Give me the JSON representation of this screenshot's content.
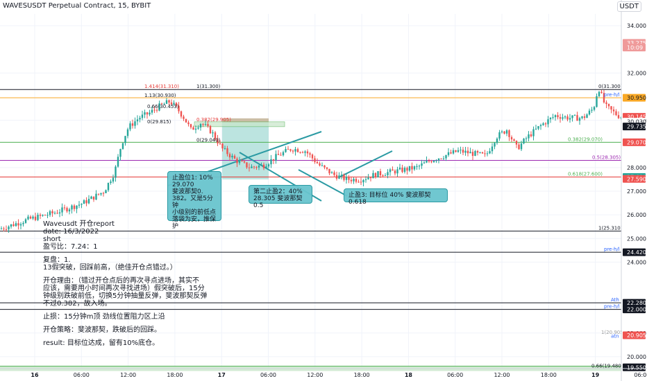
{
  "header": {
    "title": "WAVESUSDT Perpetual Contract, 15, BYBIT",
    "currency_button": "USDT"
  },
  "colors": {
    "up": "#26a69a",
    "down": "#ef5350",
    "fib_red": "#e53935",
    "fib_green": "#4caf50",
    "fib_purple": "#9c27b0",
    "fib_orange": "#f9a825",
    "teal_box": "#9fd9d3",
    "callout_bg": "#68c4cd",
    "badge_blue": "#2962ff",
    "badge_dark": "#131722"
  },
  "chart_data": {
    "type": "candlestick",
    "y_range": [
      19.5,
      34.5
    ],
    "y_ticks": [
      "34.000",
      "32.000",
      "30.000",
      "28.000",
      "27.000",
      "26.000",
      "25.000",
      "24.000",
      "22.000",
      "21.000",
      "20.000"
    ],
    "x_ticks": [
      "16",
      "06:00",
      "12:00",
      "18:00",
      "17",
      "06:00",
      "12:00",
      "18:00",
      "18",
      "06:00",
      "12:00",
      "18:00",
      "19",
      "06:00"
    ],
    "close_path": [
      [
        0,
        25.4
      ],
      [
        40,
        25.8
      ],
      [
        80,
        26.1
      ],
      [
        120,
        26.5
      ],
      [
        150,
        27.0
      ],
      [
        165,
        27.8
      ],
      [
        175,
        29.0
      ],
      [
        185,
        29.7
      ],
      [
        200,
        30.1
      ],
      [
        215,
        30.3
      ],
      [
        230,
        30.6
      ],
      [
        245,
        30.8
      ],
      [
        255,
        30.5
      ],
      [
        265,
        30.1
      ],
      [
        275,
        29.6
      ],
      [
        290,
        29.9
      ],
      [
        305,
        29.5
      ],
      [
        320,
        28.8
      ],
      [
        340,
        28.3
      ],
      [
        360,
        28.0
      ],
      [
        380,
        28.1
      ],
      [
        400,
        28.5
      ],
      [
        420,
        28.8
      ],
      [
        440,
        28.7
      ],
      [
        460,
        28.1
      ],
      [
        480,
        27.7
      ],
      [
        500,
        27.5
      ],
      [
        520,
        27.5
      ],
      [
        540,
        27.7
      ],
      [
        560,
        27.8
      ],
      [
        580,
        27.9
      ],
      [
        600,
        28.0
      ],
      [
        620,
        28.3
      ],
      [
        640,
        28.5
      ],
      [
        660,
        28.7
      ],
      [
        680,
        28.6
      ],
      [
        700,
        28.5
      ],
      [
        715,
        29.3
      ],
      [
        730,
        29.6
      ],
      [
        745,
        28.8
      ],
      [
        760,
        29.3
      ],
      [
        780,
        29.8
      ],
      [
        800,
        30.2
      ],
      [
        820,
        30.1
      ],
      [
        840,
        30.1
      ],
      [
        855,
        30.5
      ],
      [
        862,
        31.4
      ],
      [
        872,
        30.6
      ],
      [
        890,
        30.2
      ],
      [
        900,
        30.1
      ]
    ],
    "price_labels": [
      {
        "text": "33.275",
        "price": 33.275,
        "color": "#ef9a9a",
        "text_color": "#ffffff"
      },
      {
        "text": "10:09",
        "price": 33.075,
        "color": "#ef9a9a",
        "text_color": "#ffffff"
      },
      {
        "text": "30.950",
        "price": 30.95,
        "color": "#f9a825",
        "text_color": "#131722"
      },
      {
        "text": "30.145",
        "price": 30.145,
        "color": "#ef5350",
        "text_color": "#ffffff"
      },
      {
        "text": "30.030",
        "price": 29.94,
        "color": "#ffffff",
        "text_color": "#131722"
      },
      {
        "text": "29.735",
        "price": 29.735,
        "color": "#131722",
        "text_color": "#ffffff"
      },
      {
        "text": "29.070",
        "price": 29.07,
        "color": "#ef5350",
        "text_color": "#ffffff"
      },
      {
        "text": "27.600",
        "price": 27.6,
        "color": "#26a69a",
        "text_color": "#ffffff"
      },
      {
        "text": "27.590",
        "price": 27.52,
        "color": "#ef5350",
        "text_color": "#ffffff"
      },
      {
        "text": "24.420",
        "price": 24.42,
        "color": "#131722",
        "text_color": "#ffffff"
      },
      {
        "text": "22.280",
        "price": 22.28,
        "color": "#131722",
        "text_color": "#ffffff"
      },
      {
        "text": "22.000",
        "price": 22.0,
        "color": "#131722",
        "text_color": "#ffffff"
      },
      {
        "text": "20.905",
        "price": 20.905,
        "color": "#ef5350",
        "text_color": "#ffffff"
      },
      {
        "text": "19.550",
        "price": 19.55,
        "color": "#131722",
        "text_color": "#ffffff"
      }
    ],
    "hlines": [
      {
        "price": 31.3,
        "color": "#131722"
      },
      {
        "price": 30.95,
        "color": "#f9a825"
      },
      {
        "price": 29.07,
        "color": "#4caf50"
      },
      {
        "price": 28.305,
        "color": "#9c27b0"
      },
      {
        "price": 27.6,
        "color": "#e53935"
      },
      {
        "price": 25.31,
        "color": "#131722"
      },
      {
        "price": 24.42,
        "color": "#131722"
      },
      {
        "price": 22.28,
        "color": "#131722"
      },
      {
        "price": 22.0,
        "color": "#131722"
      },
      {
        "price": 19.6,
        "color": "#4caf50"
      }
    ],
    "annotations": [
      {
        "text": "1(31.300)",
        "price": 31.3,
        "color": "#131722"
      },
      {
        "text": "0(31.300)",
        "price": 31.3,
        "color": "#131722"
      },
      {
        "text": "1.414(31.310)",
        "price": 31.31,
        "color": "#e53935"
      },
      {
        "text": "1.13(30.930)",
        "price": 30.93,
        "color": "#131722"
      },
      {
        "text": "0.66(30.453)",
        "price": 30.45,
        "color": "#131722"
      },
      {
        "text": "0(29.815)",
        "price": 29.815,
        "color": "#131722"
      },
      {
        "text": "0.382(29.905)",
        "price": 29.905,
        "color": "#e53935"
      },
      {
        "text": "0(29.040)",
        "price": 29.04,
        "color": "#131722"
      },
      {
        "text": "0.382(29.070)",
        "price": 29.07,
        "color": "#4caf50"
      },
      {
        "text": "0.5(28.305)",
        "price": 28.305,
        "color": "#9c27b0"
      },
      {
        "text": "0.618(27.600)",
        "price": 27.6,
        "color": "#4caf50"
      },
      {
        "text": "1(25.310)",
        "price": 25.31,
        "color": "#131722"
      },
      {
        "text": "pre-h/l",
        "price": 30.95,
        "color": "#2962ff"
      },
      {
        "text": "pre-h/l",
        "price": 24.42,
        "color": "#2962ff"
      },
      {
        "text": "Ath",
        "price": 22.28,
        "color": "#2962ff"
      },
      {
        "text": "pre-h/l",
        "price": 22.0,
        "color": "#2962ff"
      },
      {
        "text": "1(20.905)",
        "price": 20.905,
        "color": "#9e9e9e"
      },
      {
        "text": "atn",
        "price": 20.75,
        "color": "#2962ff"
      },
      {
        "text": "0.66(19.480)",
        "price": 19.48,
        "color": "#131722"
      }
    ]
  },
  "callouts": {
    "tp1": "止盈位1: 10%\n29.070\n斐波那契0.\n382。又是5分钟\n小级别的前低点\n落袋为安，推保\n护",
    "tp2": "第二止盈2：40%\n28.305  斐波那契0.5",
    "tp3": "止盈3: 目标位 40% 斐波那契0.618"
  },
  "report": {
    "title": "Waveusdt 开仓report",
    "date": "date: 16/3/2022",
    "side": "short",
    "ratio": "盈亏比：7.24：1",
    "review_head": "复盘：1.",
    "review_body": "13假突破，回踩前高，（绝佳开仓点错过。）",
    "reason": "开仓理由：（错过开仓点后的再次寻点进场，其实不\n应该，需要用小时间再次寻找进场）假突破后，15分\n钟级别跌破前低，切换5分钟抽量反弹，斐波那契反弹\n不过0.382，故入场。",
    "stop": "止损：15分钟m顶 劲线位置阻力区上沿",
    "strategy": "开仓策略：斐波那契，跌破后的回踩。",
    "result": "result: 目标位达成，留有10%底仓。"
  }
}
